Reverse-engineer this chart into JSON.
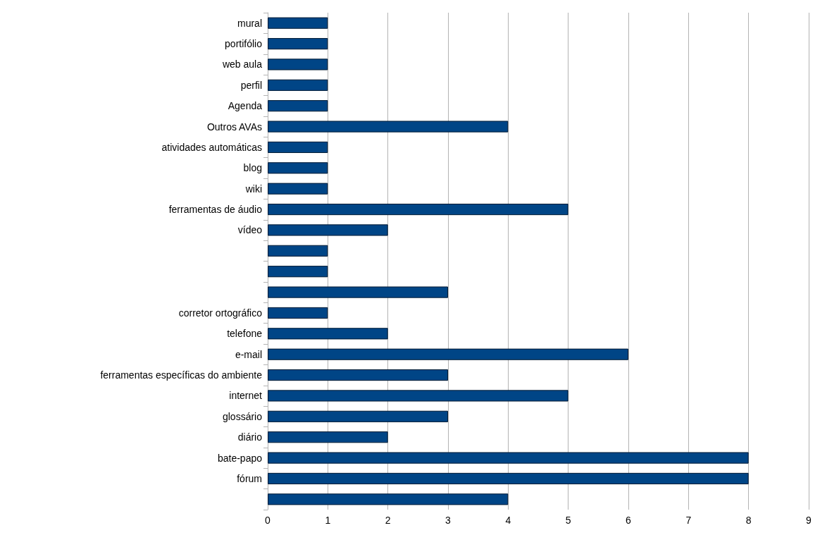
{
  "chart_data": {
    "type": "bar",
    "orientation": "horizontal",
    "categories": [
      "mural",
      "portifólio",
      "web aula",
      "perfil",
      "Agenda",
      "Outros AVAs",
      "atividades automáticas",
      "blog",
      "wiki",
      "ferramentas de áudio",
      "vídeo",
      null,
      null,
      null,
      "corretor ortográfico",
      "telefone",
      "e-mail",
      "ferramentas específicas do ambiente",
      "internet",
      "glossário",
      "diário",
      "bate-papo",
      "fórum",
      null
    ],
    "values": [
      1,
      1,
      1,
      1,
      1,
      4,
      1,
      1,
      1,
      5,
      2,
      1,
      1,
      3,
      1,
      2,
      6,
      3,
      5,
      3,
      2,
      8,
      8,
      4
    ],
    "color": "#004586",
    "xlim": [
      0,
      9
    ],
    "xticks": [
      0,
      1,
      2,
      3,
      4,
      5,
      6,
      7,
      8,
      9
    ],
    "grid": "x"
  }
}
